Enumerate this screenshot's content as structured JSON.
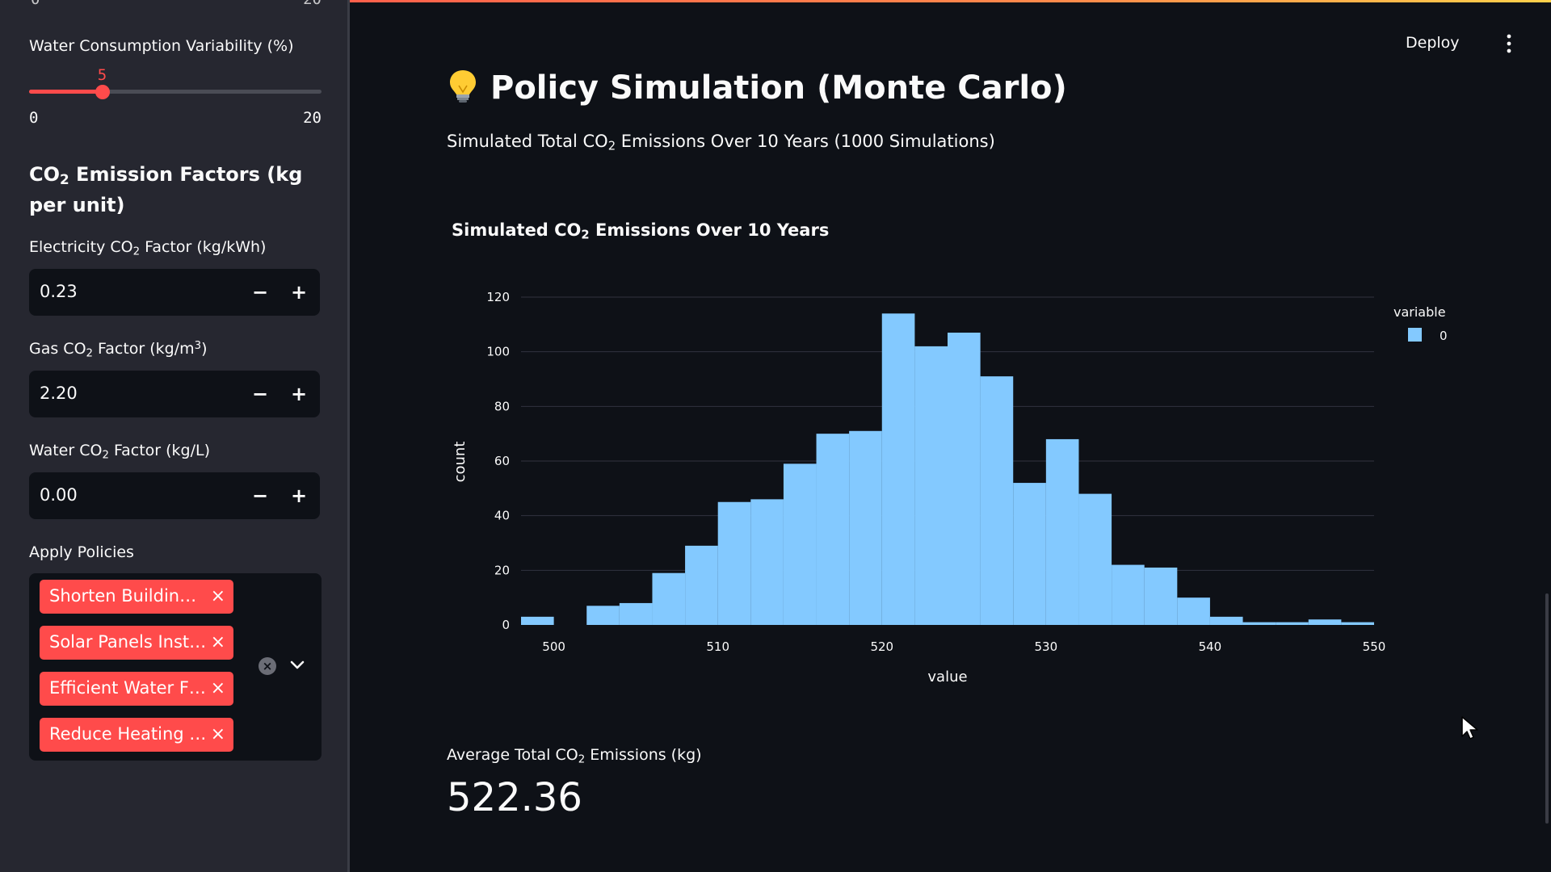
{
  "sidebar": {
    "ghost_tick_min": "0",
    "ghost_tick_max": "20",
    "water_slider": {
      "label": "Water Consumption Variability (%)",
      "value": "5",
      "min": "0",
      "max": "20",
      "value_num": 5,
      "min_num": 0,
      "max_num": 20
    },
    "section_title_pre": "CO",
    "section_title_sub": "2",
    "section_title_post": " Emission Factors (kg per unit)",
    "electricity": {
      "label_pre": "Electricity CO",
      "label_sub": "2",
      "label_post": " Factor (kg/kWh)",
      "value": "0.23"
    },
    "gas": {
      "label_pre": "Gas CO",
      "label_sub": "2",
      "label_post": " Factor (kg/m",
      "label_sup": "3",
      "label_end": ")",
      "value": "2.20"
    },
    "water": {
      "label_pre": "Water CO",
      "label_sub": "2",
      "label_post": " Factor (kg/L)",
      "value": "0.00"
    },
    "policies": {
      "label": "Apply Policies",
      "tags": [
        "Shorten Buildin…",
        "Solar Panels Inst…",
        "Efficient Water F…",
        "Reduce Heating …"
      ]
    },
    "minus_label": "−",
    "plus_label": "+",
    "remove_label": "×"
  },
  "header": {
    "deploy_label": "Deploy"
  },
  "main": {
    "title_icon": "lightbulb-icon",
    "title": "Policy Simulation (Monte Carlo)",
    "subtitle_pre": "Simulated Total CO",
    "subtitle_sub": "2",
    "subtitle_post": " Emissions Over 10 Years (1000 Simulations)",
    "metric_label_pre": "Average Total CO",
    "metric_label_sub": "2",
    "metric_label_post": " Emissions (kg)",
    "metric_value": "522.36"
  },
  "chart_data": {
    "type": "bar",
    "title_pre": "Simulated CO",
    "title_sub": "2",
    "title_post": " Emissions Over 10 Years",
    "xlabel": "value",
    "ylabel": "count",
    "xlim": [
      498,
      550
    ],
    "ylim": [
      0,
      120
    ],
    "x_ticks": [
      500,
      510,
      520,
      530,
      540,
      550
    ],
    "y_ticks": [
      0,
      20,
      40,
      60,
      80,
      100,
      120
    ],
    "bin_width": 2,
    "bins_start": [
      498,
      500,
      502,
      504,
      506,
      508,
      510,
      512,
      514,
      516,
      518,
      520,
      522,
      524,
      526,
      528,
      530,
      532,
      534,
      536,
      538,
      540,
      542,
      544,
      546,
      548
    ],
    "series": [
      {
        "name": "0",
        "values": [
          3,
          0,
          7,
          8,
          19,
          29,
          45,
          46,
          59,
          70,
          71,
          114,
          102,
          107,
          91,
          52,
          68,
          48,
          22,
          21,
          10,
          3,
          1,
          1,
          2,
          1
        ]
      }
    ],
    "legend_title": "variable",
    "legend_position": "right",
    "grid": true,
    "colors": {
      "bar": "#83c9ff",
      "grid": "#31333f",
      "text": "#fafafa"
    }
  }
}
